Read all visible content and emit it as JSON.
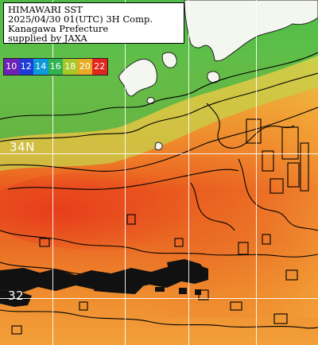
{
  "header": {
    "line1": "HIMAWARI SST",
    "line2": "2025/04/30 01(UTC) 3H Comp.",
    "line3": "Kanagawa Prefecture",
    "line4": "supplied by JAXA"
  },
  "legend": {
    "items": [
      {
        "label": "10",
        "color": "#6d22b4"
      },
      {
        "label": "12",
        "color": "#1f3cd9"
      },
      {
        "label": "14",
        "color": "#0e9ad6"
      },
      {
        "label": "16",
        "color": "#2fb24f"
      },
      {
        "label": "18",
        "color": "#a8c82a"
      },
      {
        "label": "20",
        "color": "#e8ab23"
      },
      {
        "label": "22",
        "color": "#e0261d"
      }
    ]
  },
  "latitude_labels": [
    "34N",
    "32"
  ],
  "colors": {
    "land": "#f4f7f0",
    "cloud": "#111111",
    "grid": "#ffffff",
    "contour": "#000000"
  }
}
